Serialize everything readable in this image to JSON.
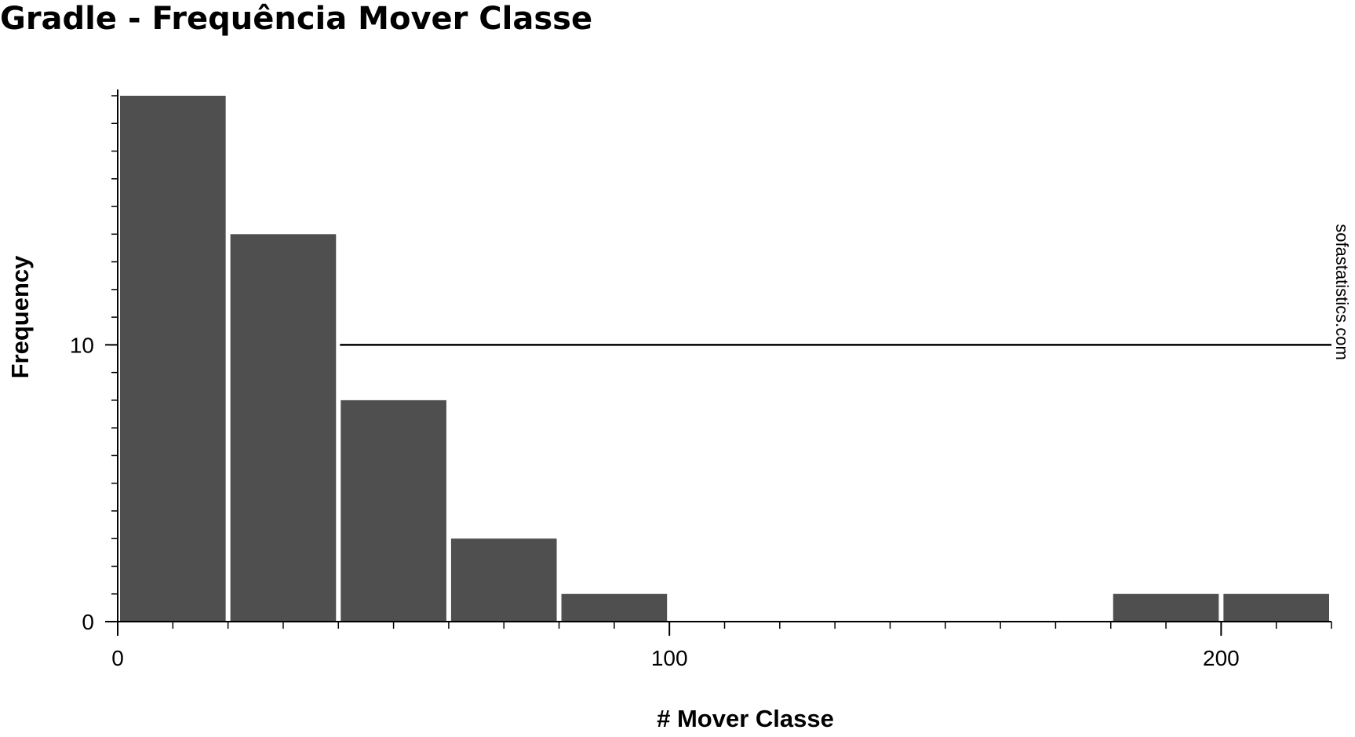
{
  "chart_data": {
    "type": "bar",
    "title": "Gradle - Frequência Mover Classe",
    "xlabel": "# Mover Classe",
    "ylabel": "Frequency",
    "bin_width": 20,
    "bins": [
      {
        "start": 0,
        "end": 20,
        "value": 19
      },
      {
        "start": 20,
        "end": 40,
        "value": 14
      },
      {
        "start": 40,
        "end": 60,
        "value": 8
      },
      {
        "start": 60,
        "end": 80,
        "value": 3
      },
      {
        "start": 80,
        "end": 100,
        "value": 1
      },
      {
        "start": 100,
        "end": 120,
        "value": 0
      },
      {
        "start": 120,
        "end": 140,
        "value": 0
      },
      {
        "start": 140,
        "end": 160,
        "value": 0
      },
      {
        "start": 160,
        "end": 180,
        "value": 0
      },
      {
        "start": 180,
        "end": 200,
        "value": 1
      },
      {
        "start": 200,
        "end": 220,
        "value": 1
      }
    ],
    "xlim": [
      0,
      220
    ],
    "ylim": [
      0,
      19
    ],
    "x_ticks": [
      0,
      100,
      200
    ],
    "y_ticks": [
      0,
      10
    ],
    "reference_line": {
      "y": 10
    },
    "bar_color": "#4f4f4f",
    "grid": false,
    "watermark": "sofastatistics.com"
  }
}
